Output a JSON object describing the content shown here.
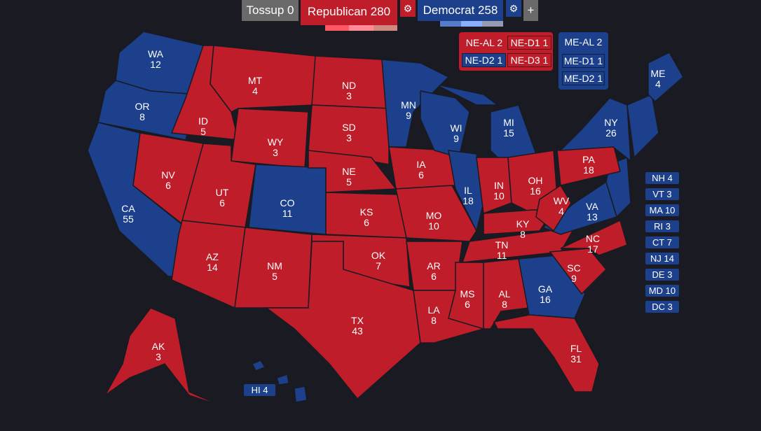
{
  "colors": {
    "republican": "#bf1d29",
    "democrat": "#1c408c",
    "tossup": "#6a6a6a",
    "background": "#191a22"
  },
  "header": {
    "tossup": "Tossup 0",
    "republican": "Republican 280",
    "democrat": "Democrat 258",
    "add_label": "+",
    "rep_shades": [
      "#ff5865",
      "#ff8b98",
      "#cf8980"
    ],
    "dem_shades": [
      "#577ccc",
      "#8aafff",
      "#949bb3"
    ]
  },
  "nebraska": {
    "al": "NE-AL 2",
    "d1": "NE-D1 1",
    "d2": "NE-D2 1",
    "d3": "NE-D3 1"
  },
  "maine": {
    "al": "ME-AL 2",
    "d1": "ME-D1 1",
    "d2": "ME-D2 1"
  },
  "states": [
    {
      "abbr": "WA",
      "ev": "12",
      "party": "D"
    },
    {
      "abbr": "OR",
      "ev": "8",
      "party": "D"
    },
    {
      "abbr": "CA",
      "ev": "55",
      "party": "D"
    },
    {
      "abbr": "ID",
      "ev": "5",
      "party": "R"
    },
    {
      "abbr": "NV",
      "ev": "6",
      "party": "R"
    },
    {
      "abbr": "MT",
      "ev": "4",
      "party": "R"
    },
    {
      "abbr": "WY",
      "ev": "3",
      "party": "R"
    },
    {
      "abbr": "UT",
      "ev": "6",
      "party": "R"
    },
    {
      "abbr": "CO",
      "ev": "11",
      "party": "D"
    },
    {
      "abbr": "AZ",
      "ev": "14",
      "party": "R"
    },
    {
      "abbr": "NM",
      "ev": "5",
      "party": "R"
    },
    {
      "abbr": "ND",
      "ev": "3",
      "party": "R"
    },
    {
      "abbr": "SD",
      "ev": "3",
      "party": "R"
    },
    {
      "abbr": "NE",
      "ev": "5",
      "party": "R"
    },
    {
      "abbr": "KS",
      "ev": "6",
      "party": "R"
    },
    {
      "abbr": "OK",
      "ev": "7",
      "party": "R"
    },
    {
      "abbr": "TX",
      "ev": "43",
      "party": "R"
    },
    {
      "abbr": "MN",
      "ev": "9",
      "party": "D"
    },
    {
      "abbr": "IA",
      "ev": "6",
      "party": "R"
    },
    {
      "abbr": "MO",
      "ev": "10",
      "party": "R"
    },
    {
      "abbr": "AR",
      "ev": "6",
      "party": "R"
    },
    {
      "abbr": "LA",
      "ev": "8",
      "party": "R"
    },
    {
      "abbr": "WI",
      "ev": "9",
      "party": "D"
    },
    {
      "abbr": "IL",
      "ev": "18",
      "party": "D"
    },
    {
      "abbr": "MI",
      "ev": "15",
      "party": "D"
    },
    {
      "abbr": "IN",
      "ev": "10",
      "party": "R"
    },
    {
      "abbr": "OH",
      "ev": "16",
      "party": "R"
    },
    {
      "abbr": "KY",
      "ev": "8",
      "party": "R"
    },
    {
      "abbr": "TN",
      "ev": "11",
      "party": "R"
    },
    {
      "abbr": "MS",
      "ev": "6",
      "party": "R"
    },
    {
      "abbr": "AL",
      "ev": "8",
      "party": "R"
    },
    {
      "abbr": "GA",
      "ev": "16",
      "party": "D"
    },
    {
      "abbr": "FL",
      "ev": "31",
      "party": "R"
    },
    {
      "abbr": "SC",
      "ev": "9",
      "party": "R"
    },
    {
      "abbr": "NC",
      "ev": "17",
      "party": "R"
    },
    {
      "abbr": "VA",
      "ev": "13",
      "party": "D"
    },
    {
      "abbr": "WV",
      "ev": "4",
      "party": "R"
    },
    {
      "abbr": "PA",
      "ev": "18",
      "party": "R"
    },
    {
      "abbr": "NY",
      "ev": "26",
      "party": "D"
    },
    {
      "abbr": "ME",
      "ev": "4",
      "party": "D"
    },
    {
      "abbr": "AK",
      "ev": "3",
      "party": "R"
    }
  ],
  "hawaii": "HI 4",
  "small_states": [
    "NH 4",
    "VT 3",
    "MA 10",
    "RI 3",
    "CT 7",
    "NJ 14",
    "DE 3",
    "MD 10",
    "DC 3"
  ]
}
